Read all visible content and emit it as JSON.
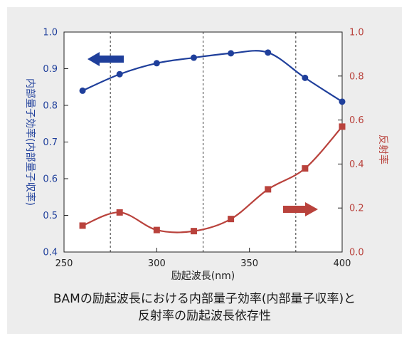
{
  "chart_data": {
    "type": "line",
    "x": [
      260,
      280,
      300,
      320,
      340,
      360,
      380,
      400
    ],
    "xlabel": "励起波長(nm)",
    "xlim": [
      250,
      400
    ],
    "xticks": [
      250,
      300,
      350,
      400
    ],
    "ylabel_left": "内部量子効率(内部量子収率)",
    "ylim_left": [
      0.4,
      1.0
    ],
    "yticks_left": [
      "0.4",
      "0.5",
      "0.6",
      "0.7",
      "0.8",
      "0.9",
      "1.0"
    ],
    "ylabel_right": "反射率",
    "ylim_right": [
      0.0,
      1.0
    ],
    "yticks_right": [
      "0.0",
      "0.2",
      "0.4",
      "0.6",
      "0.8",
      "1.0"
    ],
    "grid": "vertical dashed",
    "series": [
      {
        "axis": "left",
        "marker": "circle",
        "color": "#1f3f9b",
        "values": [
          0.84,
          0.885,
          0.915,
          0.93,
          0.942,
          0.944,
          0.875,
          0.81
        ]
      },
      {
        "axis": "right",
        "marker": "square",
        "color": "#b9423c",
        "values": [
          0.12,
          0.18,
          0.1,
          0.095,
          0.15,
          0.285,
          0.38,
          0.57
        ]
      }
    ],
    "arrows": [
      {
        "direction": "left",
        "points_to": "left axis",
        "color": "#1f3f9b"
      },
      {
        "direction": "right",
        "points_to": "right axis",
        "color": "#b9423c"
      }
    ]
  },
  "caption": {
    "line1": "BAMの励起波長における内部量子効率(内部量子収率)と",
    "line2": "反射率の励起波長依存性"
  },
  "colors": {
    "background": "#ededed",
    "plot_area": "#ffffff",
    "left_axis_text": "#1f3f9b",
    "right_axis_text": "#b9423c"
  }
}
